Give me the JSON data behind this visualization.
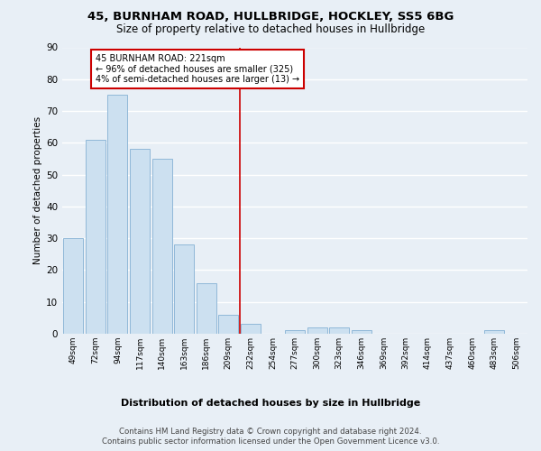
{
  "title1": "45, BURNHAM ROAD, HULLBRIDGE, HOCKLEY, SS5 6BG",
  "title2": "Size of property relative to detached houses in Hullbridge",
  "xlabel": "Distribution of detached houses by size in Hullbridge",
  "ylabel": "Number of detached properties",
  "bin_labels": [
    "49sqm",
    "72sqm",
    "94sqm",
    "117sqm",
    "140sqm",
    "163sqm",
    "186sqm",
    "209sqm",
    "232sqm",
    "254sqm",
    "277sqm",
    "300sqm",
    "323sqm",
    "346sqm",
    "369sqm",
    "392sqm",
    "414sqm",
    "437sqm",
    "460sqm",
    "483sqm",
    "506sqm"
  ],
  "bar_values": [
    30,
    61,
    75,
    58,
    55,
    28,
    16,
    6,
    3,
    0,
    1,
    2,
    2,
    1,
    0,
    0,
    0,
    0,
    0,
    1,
    0
  ],
  "bar_color": "#cce0f0",
  "bar_edge_color": "#90b8d8",
  "vline_color": "#cc0000",
  "annotation_line1": "45 BURNHAM ROAD: 221sqm",
  "annotation_line2": "← 96% of detached houses are smaller (325)",
  "annotation_line3": "4% of semi-detached houses are larger (13) →",
  "annotation_box_color": "#cc0000",
  "annotation_bg": "#ffffff",
  "ylim": [
    0,
    90
  ],
  "yticks": [
    0,
    10,
    20,
    30,
    40,
    50,
    60,
    70,
    80,
    90
  ],
  "footer1": "Contains HM Land Registry data © Crown copyright and database right 2024.",
  "footer2": "Contains public sector information licensed under the Open Government Licence v3.0.",
  "bg_color": "#e8eff6",
  "plot_bg_color": "#e8eff6",
  "grid_color": "#ffffff"
}
